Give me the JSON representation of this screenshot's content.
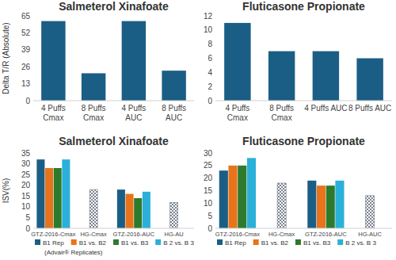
{
  "chart_data": [
    {
      "type": "bar",
      "title": "Salmeterol Xinafoate",
      "ylabel": "Delta T/R (Absolute)",
      "categories": [
        "4 Puffs Cmax",
        "8 Puffs Cmax",
        "4 Puffs AUC",
        "8 Puffs AUC"
      ],
      "values": [
        61,
        21,
        61,
        23
      ],
      "color": "#1b5e85",
      "ylim": [
        0,
        65
      ],
      "yticks": [
        0,
        13,
        26,
        39,
        52,
        65
      ],
      "grid": false
    },
    {
      "type": "bar",
      "title": "Fluticasone Propionate",
      "categories": [
        "4 Puffs Cmax",
        "8 Puffs Cmax",
        "4 Puffs AUC",
        "8 Puffs AUC"
      ],
      "values": [
        11,
        7,
        7,
        6
      ],
      "color": "#1b5e85",
      "ylim": [
        0,
        12
      ],
      "yticks": [
        0,
        2,
        4,
        6,
        8,
        10,
        12
      ],
      "grid": false
    },
    {
      "type": "bar",
      "title": "Salmeterol Xinafoate",
      "ylabel": "ISV(%)",
      "categories": [
        "GTZ-2016-Cmax",
        "HG-Cmax",
        "GTZ-2016-AUC",
        "HG-AU"
      ],
      "series": [
        {
          "name": "B1 Rep",
          "color": "#1b5e85",
          "values": [
            32,
            null,
            18,
            null
          ]
        },
        {
          "name": "B1 vs. B2",
          "color": "#e8731a",
          "values": [
            28,
            null,
            16,
            null
          ]
        },
        {
          "name": "B1 vs. B3",
          "color": "#2d7a2d",
          "values": [
            28,
            null,
            14,
            null
          ]
        },
        {
          "name": "B 2 vs. B 3",
          "color": "#2bb0d9",
          "values": [
            32,
            null,
            17,
            null
          ]
        },
        {
          "type": "hatched",
          "color": "#6f7c8c",
          "values": [
            null,
            18,
            null,
            12
          ]
        }
      ],
      "annotations": [
        "(Advair® Replicates)"
      ],
      "ylim": [
        0,
        35
      ],
      "yticks": [
        0,
        5,
        10,
        15,
        20,
        25,
        30,
        35
      ],
      "grid": false,
      "legend": "bottom"
    },
    {
      "type": "bar",
      "title": "Fluticasone Propionate",
      "categories": [
        "GTZ-2016-Cmax",
        "HG-Cmax",
        "GTZ-2016-AUC",
        "HG-AUC"
      ],
      "series": [
        {
          "name": "B1 Rep",
          "color": "#1b5e85",
          "values": [
            23,
            null,
            19,
            null
          ]
        },
        {
          "name": "B1 vs. B2",
          "color": "#e8731a",
          "values": [
            25,
            null,
            17,
            null
          ]
        },
        {
          "name": "B1 vs. B3",
          "color": "#2d7a2d",
          "values": [
            25,
            null,
            17,
            null
          ]
        },
        {
          "name": "B 2 vs. B 3",
          "color": "#2bb0d9",
          "values": [
            28,
            null,
            19,
            null
          ]
        },
        {
          "type": "hatched",
          "color": "#6f7c8c",
          "values": [
            null,
            18,
            null,
            13
          ]
        }
      ],
      "ylim": [
        0,
        30
      ],
      "yticks": [
        0,
        5,
        10,
        15,
        20,
        25,
        30
      ],
      "grid": false,
      "legend": "bottom"
    }
  ]
}
